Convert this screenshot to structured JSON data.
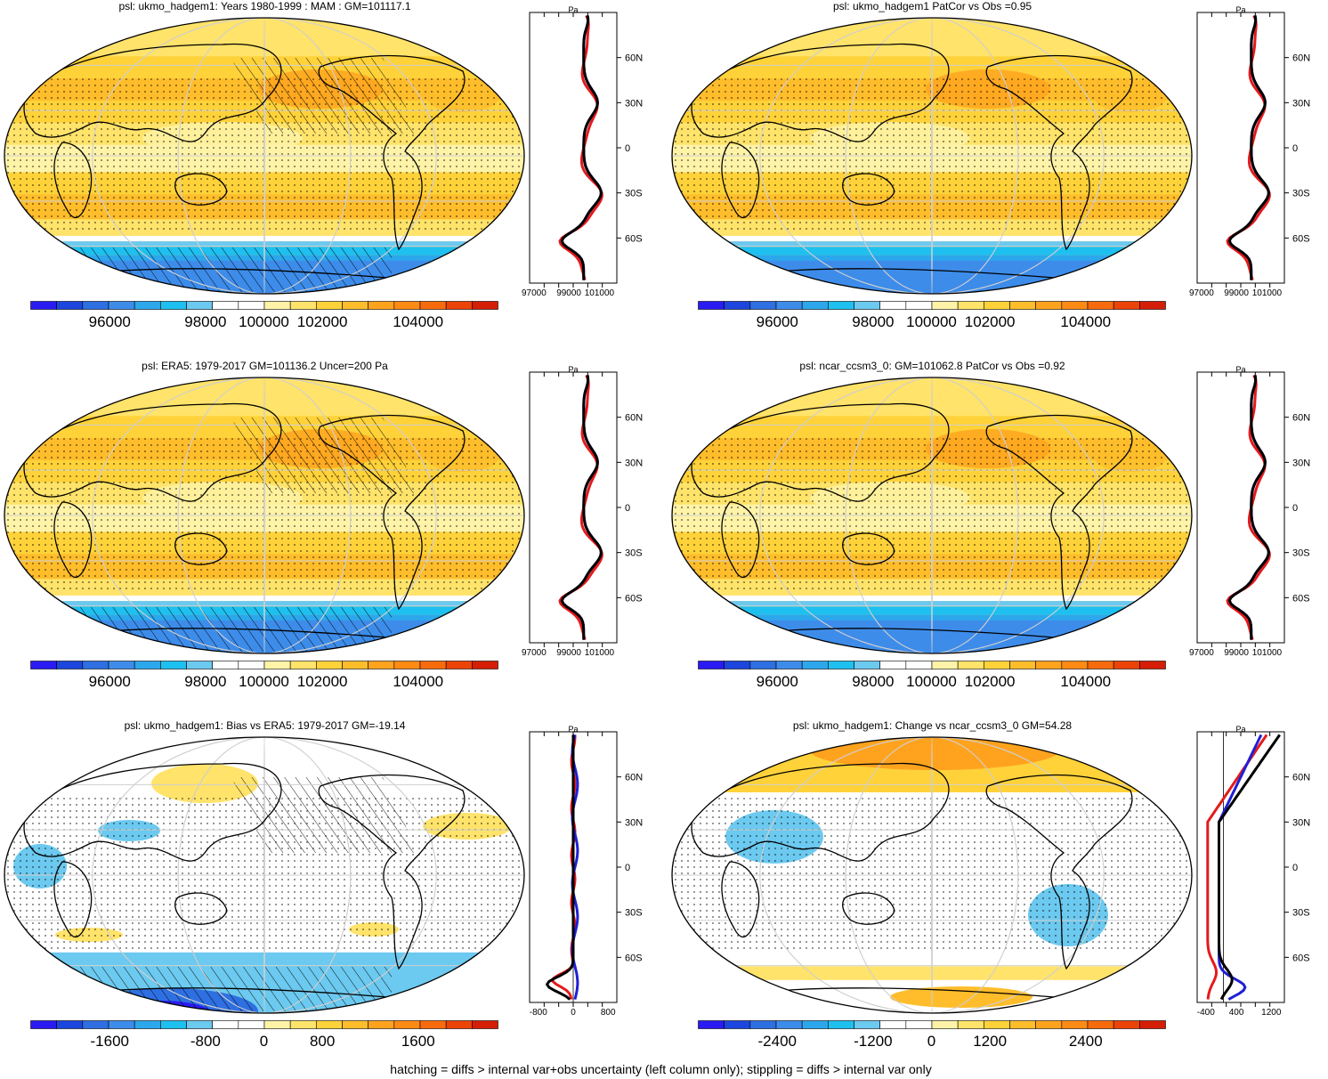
{
  "panels": [
    {
      "id": "p1",
      "title": "psl: ukmo_hadgem1: Years 1980-1999 : MAM : GM=101117.1",
      "kind": "abs",
      "hatch": true,
      "colorbar": {
        "ticks": [
          "96000",
          "98000",
          "100000",
          "102000",
          "104000"
        ]
      },
      "profile": {
        "xticks": [
          "97000",
          "99000",
          "101000"
        ],
        "unit": "Pa",
        "yticks": [
          "60N",
          "30N",
          "0",
          "30S",
          "60S"
        ]
      }
    },
    {
      "id": "p2",
      "title": "psl: ukmo_hadgem1 PatCor vs Obs =0.95",
      "kind": "abs",
      "hatch": false,
      "colorbar": {
        "ticks": [
          "96000",
          "98000",
          "100000",
          "102000",
          "104000"
        ]
      },
      "profile": {
        "xticks": [
          "97000",
          "99000",
          "101000"
        ],
        "unit": "Pa",
        "yticks": [
          "60N",
          "30N",
          "0",
          "30S",
          "60S"
        ]
      }
    },
    {
      "id": "p3",
      "title": "psl: ERA5: 1979-2017 GM=101136.2 Uncer=200 Pa",
      "kind": "abs",
      "hatch": true,
      "colorbar": {
        "ticks": [
          "96000",
          "98000",
          "100000",
          "102000",
          "104000"
        ]
      },
      "profile": {
        "xticks": [
          "97000",
          "99000",
          "101000"
        ],
        "unit": "Pa",
        "yticks": [
          "60N",
          "30N",
          "0",
          "30S",
          "60S"
        ]
      }
    },
    {
      "id": "p4",
      "title": "psl: ncar_ccsm3_0: GM=101062.8 PatCor vs Obs =0.92",
      "kind": "abs",
      "hatch": false,
      "colorbar": {
        "ticks": [
          "96000",
          "98000",
          "100000",
          "102000",
          "104000"
        ]
      },
      "profile": {
        "xticks": [
          "97000",
          "99000",
          "101000"
        ],
        "unit": "Pa",
        "yticks": [
          "60N",
          "30N",
          "0",
          "30S",
          "60S"
        ]
      }
    },
    {
      "id": "p5",
      "title": "psl: ukmo_hadgem1: Bias vs ERA5: 1979-2017 GM=-19.14",
      "kind": "bias",
      "hatch": true,
      "colorbar": {
        "ticks": [
          "-1600",
          "-800",
          "0",
          "800",
          "1600"
        ]
      },
      "profile": {
        "xticks": [
          "-800",
          "0",
          "800"
        ],
        "unit": "Pa",
        "yticks": [
          "60N",
          "30N",
          "0",
          "30S",
          "60S"
        ]
      }
    },
    {
      "id": "p6",
      "title": "psl: ukmo_hadgem1: Change vs ncar_ccsm3_0 GM=54.28",
      "kind": "change",
      "hatch": false,
      "colorbar": {
        "ticks": [
          "-2400",
          "-1200",
          "0",
          "1200",
          "2400"
        ]
      },
      "profile": {
        "xticks": [
          "-400",
          "400",
          "1200"
        ],
        "unit": "Pa",
        "yticks": [
          "60N",
          "30N",
          "0",
          "30S",
          "60S"
        ]
      }
    }
  ],
  "colors": {
    "palette": [
      "#2a1bf2",
      "#1c46dd",
      "#2e6fe2",
      "#3d8cea",
      "#2ca7ec",
      "#1ec0ef",
      "#6cc9ef",
      "#ffffff",
      "#ffffff",
      "#fff3a8",
      "#ffe36a",
      "#ffd23a",
      "#ffbd2b",
      "#ffa31e",
      "#ff8a14",
      "#f86b0c",
      "#ec4308",
      "#d41e06"
    ],
    "model": "#e41a1c",
    "obs": "#1f1fd6",
    "other": "#000000"
  },
  "footnote": "hatching = diffs > internal var+obs uncertainty (left column only); stippling = diffs > internal var only"
}
